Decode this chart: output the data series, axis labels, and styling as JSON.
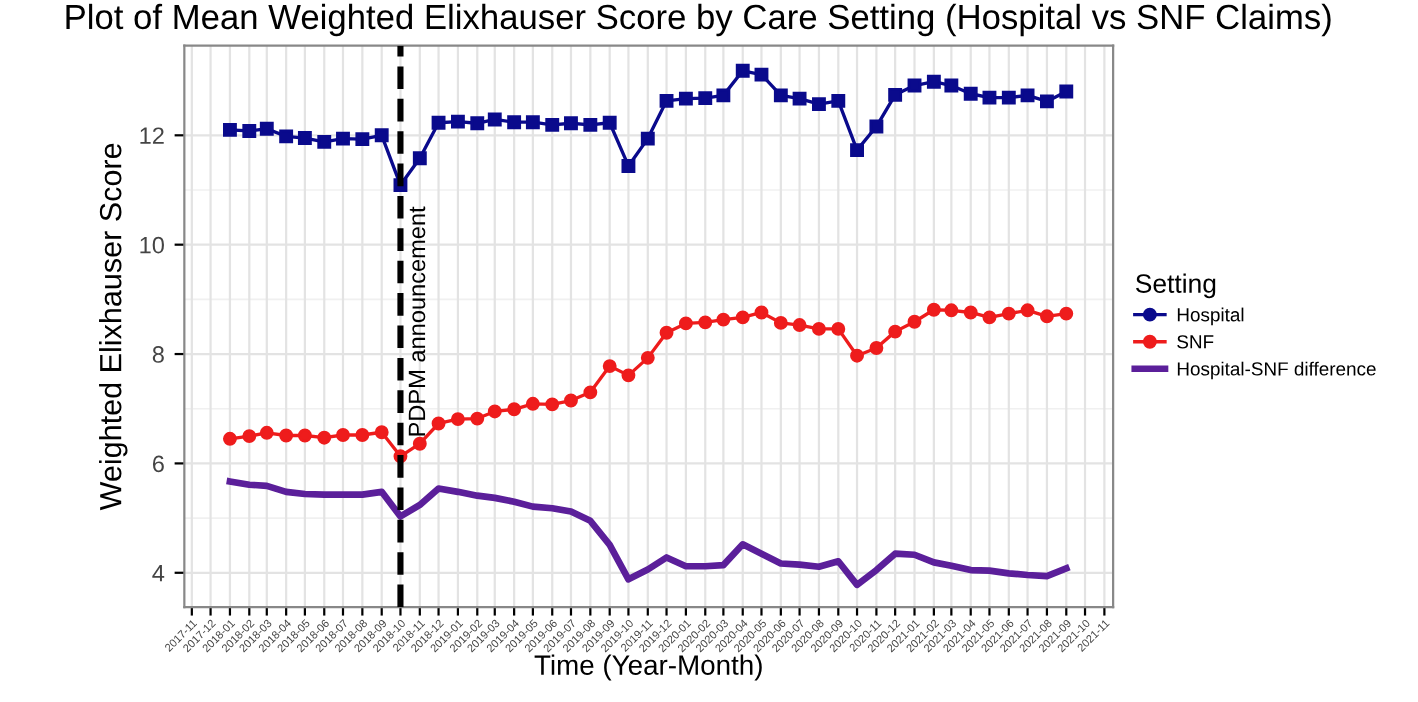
{
  "chart_data": {
    "type": "line",
    "title": "Plot of Mean Weighted Elixhauser Score by Care Setting (Hospital vs SNF Claims)",
    "xlabel": "Time (Year-Month)",
    "ylabel": "Weighted Elixhauser Score",
    "legend_title": "Setting",
    "legend": "right",
    "x": [
      "2018-01",
      "2018-02",
      "2018-03",
      "2018-04",
      "2018-05",
      "2018-06",
      "2018-07",
      "2018-08",
      "2018-09",
      "2018-10",
      "2018-11",
      "2018-12",
      "2019-01",
      "2019-02",
      "2019-03",
      "2019-04",
      "2019-05",
      "2019-06",
      "2019-07",
      "2019-08",
      "2019-09",
      "2019-10",
      "2019-11",
      "2019-12",
      "2020-01",
      "2020-02",
      "2020-03",
      "2020-04",
      "2020-05",
      "2020-06",
      "2020-07",
      "2020-08",
      "2020-09",
      "2020-10",
      "2020-11",
      "2020-12",
      "2021-01",
      "2021-02",
      "2021-03",
      "2021-04",
      "2021-05",
      "2021-06",
      "2021-07",
      "2021-08",
      "2021-09"
    ],
    "series": [
      {
        "name": "Hospital",
        "color": "#0a0a8c",
        "marker": "square",
        "values": [
          12.1,
          12.08,
          12.12,
          11.98,
          11.95,
          11.88,
          11.94,
          11.93,
          12.0,
          11.09,
          11.58,
          12.23,
          12.25,
          12.22,
          12.29,
          12.24,
          12.24,
          12.19,
          12.22,
          12.19,
          12.23,
          11.44,
          11.94,
          12.63,
          12.67,
          12.68,
          12.73,
          13.18,
          13.11,
          12.73,
          12.67,
          12.57,
          12.63,
          11.73,
          12.16,
          12.74,
          12.91,
          12.98,
          12.91,
          12.76,
          12.69,
          12.69,
          12.73,
          12.62,
          12.8
        ]
      },
      {
        "name": "SNF",
        "color": "#ee1c1c",
        "marker": "circle",
        "values": [
          6.45,
          6.5,
          6.56,
          6.51,
          6.51,
          6.47,
          6.52,
          6.52,
          6.57,
          6.13,
          6.36,
          6.73,
          6.81,
          6.82,
          6.95,
          6.99,
          7.09,
          7.08,
          7.15,
          7.3,
          7.78,
          7.61,
          7.93,
          8.39,
          8.56,
          8.58,
          8.63,
          8.67,
          8.76,
          8.57,
          8.53,
          8.46,
          8.46,
          7.97,
          8.11,
          8.41,
          8.59,
          8.81,
          8.8,
          8.76,
          8.67,
          8.74,
          8.8,
          8.69,
          8.74
        ]
      },
      {
        "name": "Hospital-SNF difference",
        "color": "#5b1f9a",
        "marker": "none",
        "values": [
          5.67,
          5.61,
          5.59,
          5.48,
          5.44,
          5.43,
          5.43,
          5.43,
          5.48,
          5.03,
          5.24,
          5.54,
          5.48,
          5.41,
          5.37,
          5.3,
          5.21,
          5.18,
          5.12,
          4.95,
          4.51,
          3.88,
          4.06,
          4.28,
          4.12,
          4.12,
          4.14,
          4.52,
          4.35,
          4.17,
          4.15,
          4.11,
          4.21,
          3.78,
          4.05,
          4.35,
          4.33,
          4.19,
          4.13,
          4.05,
          4.04,
          3.99,
          3.96,
          3.94,
          4.08
        ]
      }
    ],
    "ylim": [
      3.37,
      13.64
    ],
    "yticks": [
      4,
      6,
      8,
      10,
      12
    ],
    "xlim": [
      "2017-10-20",
      "2021-11-15"
    ],
    "xticks": [
      "2017-11",
      "2017-12",
      "2018-01",
      "2018-02",
      "2018-03",
      "2018-04",
      "2018-05",
      "2018-06",
      "2018-07",
      "2018-08",
      "2018-09",
      "2018-10",
      "2018-11",
      "2018-12",
      "2019-01",
      "2019-02",
      "2019-03",
      "2019-04",
      "2019-05",
      "2019-06",
      "2019-07",
      "2019-08",
      "2019-09",
      "2019-10",
      "2019-11",
      "2019-12",
      "2020-01",
      "2020-02",
      "2020-03",
      "2020-04",
      "2020-05",
      "2020-06",
      "2020-07",
      "2020-08",
      "2020-09",
      "2020-10",
      "2020-11",
      "2020-12",
      "2021-01",
      "2021-02",
      "2021-03",
      "2021-04",
      "2021-05",
      "2021-06",
      "2021-07",
      "2021-08",
      "2021-09",
      "2021-10",
      "2021-11"
    ],
    "grid": true,
    "ref_lines": [
      {
        "axis": "x",
        "value": "2018-10",
        "label": "PDPM announcement",
        "color": "#000000",
        "line_style": "dashed"
      }
    ]
  }
}
